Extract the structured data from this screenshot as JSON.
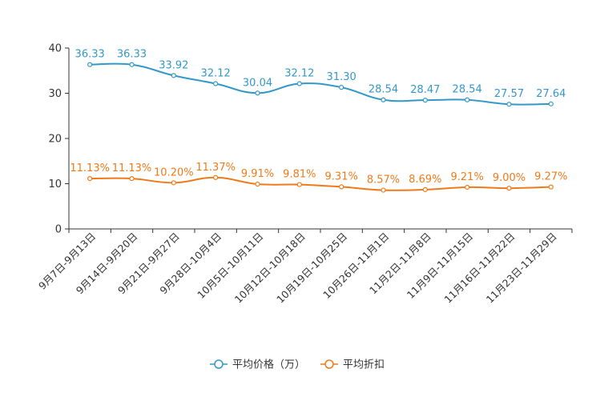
{
  "chart_data": {
    "type": "line",
    "title": "",
    "xlabel": "",
    "ylabel": "",
    "ylim": [
      0,
      40
    ],
    "yticks": [
      0,
      10,
      20,
      30,
      40
    ],
    "grid": false,
    "legend_position": "bottom",
    "categories": [
      "9月7日-9月13日",
      "9月14日-9月20日",
      "9月21日-9月27日",
      "9月28日-10月4日",
      "10月5日-10月11日",
      "10月12日-10月18日",
      "10月19日-10月25日",
      "10月26日-11月1日",
      "11月2日-11月8日",
      "11月9日-11月15日",
      "11月16日-11月22日",
      "11月23日-11月29日"
    ],
    "series": [
      {
        "name": "平均价格（万）",
        "color": "#3398c8",
        "values": [
          36.33,
          36.33,
          33.92,
          32.12,
          30.04,
          32.12,
          31.3,
          28.54,
          28.47,
          28.54,
          27.57,
          27.64
        ],
        "labels": [
          "36.33",
          "36.33",
          "33.92",
          "32.12",
          "30.04",
          "32.12",
          "31.30",
          "28.54",
          "28.47",
          "28.54",
          "27.57",
          "27.64"
        ]
      },
      {
        "name": "平均折扣",
        "color": "#f07a1a",
        "values": [
          11.13,
          11.13,
          10.2,
          11.37,
          9.91,
          9.81,
          9.31,
          8.57,
          8.69,
          9.21,
          9.0,
          9.27
        ],
        "labels": [
          "11.13%",
          "11.13%",
          "10.20%",
          "11.37%",
          "9.91%",
          "9.81%",
          "9.31%",
          "8.57%",
          "8.69%",
          "9.21%",
          "9.00%",
          "9.27%"
        ]
      }
    ]
  }
}
